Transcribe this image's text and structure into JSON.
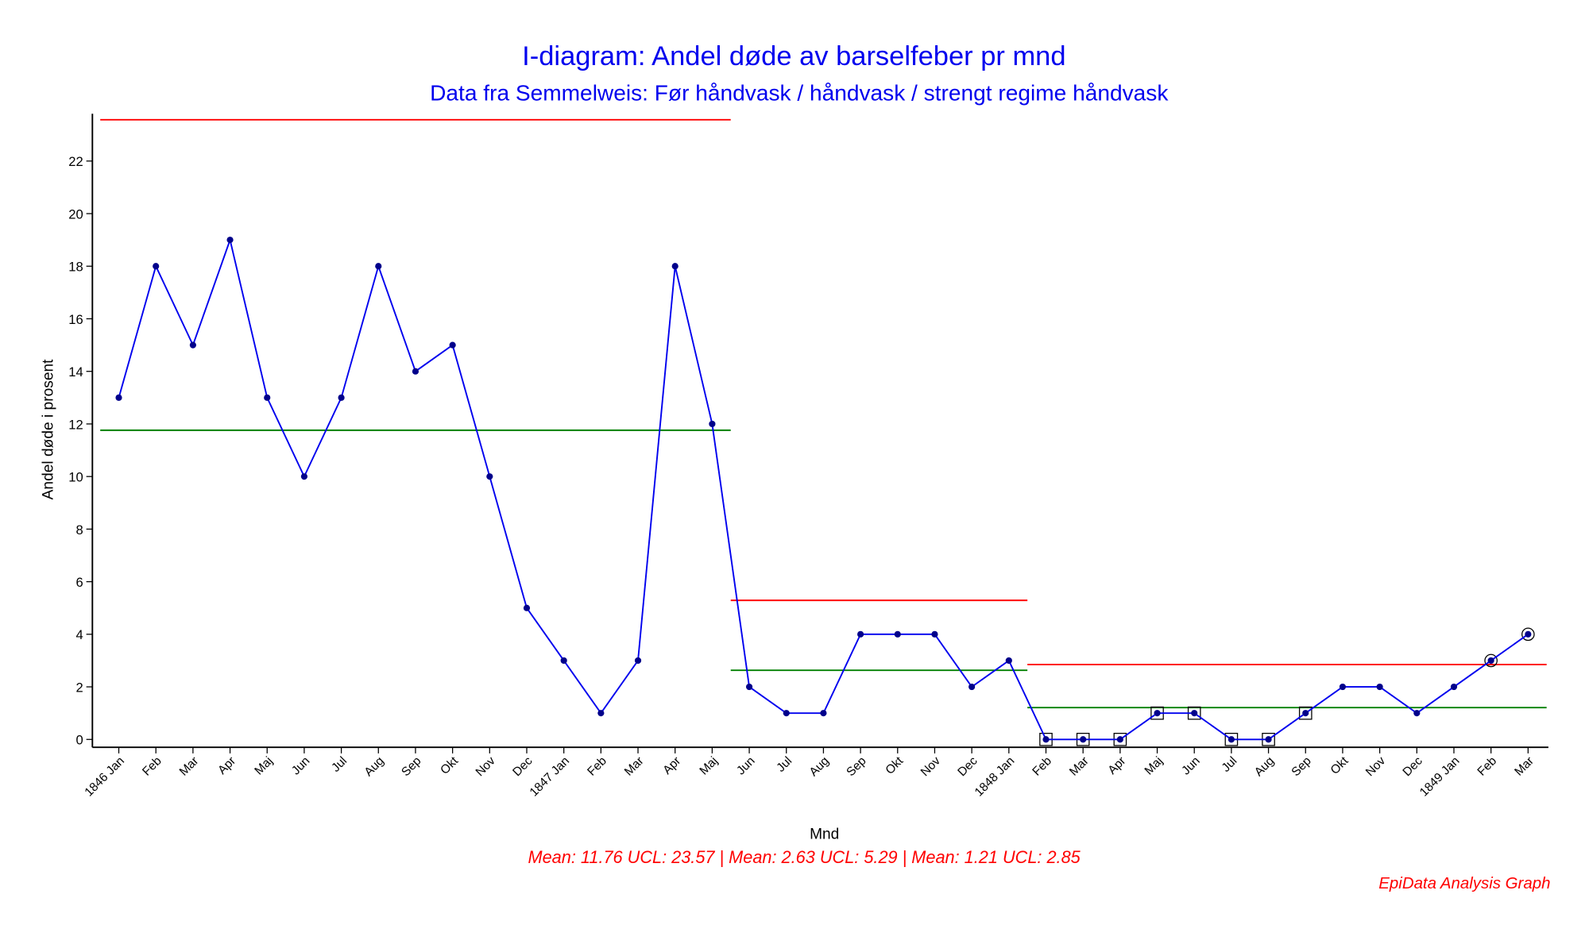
{
  "chart_data": {
    "type": "control",
    "title": "I-diagram: Andel døde av barselfeber pr mnd",
    "subtitle": "Data fra Semmelweis: Før håndvask / håndvask / strengt regime håndvask",
    "x_label": "Mnd",
    "y_label": "Andel døde i prosent",
    "footer": "Mean: 11.76 UCL: 23.57 |   Mean: 2.63 UCL: 5.29 |   Mean: 1.21 UCL: 2.85",
    "credit": "EpiData Analysis Graph",
    "categories": [
      "1846 Jan",
      "Feb",
      "Mar",
      "Apr",
      "Maj",
      "Jun",
      "Jul",
      "Aug",
      "Sep",
      "Okt",
      "Nov",
      "Dec",
      "1847 Jan",
      "Feb",
      "Mar",
      "Apr",
      "Maj",
      "Jun",
      "Jul",
      "Aug",
      "Sep",
      "Okt",
      "Nov",
      "Dec",
      "1848 Jan",
      "Feb",
      "Mar",
      "Apr",
      "Maj",
      "Jun",
      "Jul",
      "Aug",
      "Sep",
      "Okt",
      "Nov",
      "Dec",
      "1849 Jan",
      "Feb",
      "Mar"
    ],
    "phases": [
      {
        "mean": 11.76,
        "ucl": 23.57,
        "values": [
          13,
          18,
          15,
          19,
          13,
          10,
          13,
          18,
          14,
          15,
          10,
          5,
          3,
          1,
          3,
          18,
          12
        ]
      },
      {
        "mean": 2.63,
        "ucl": 5.29,
        "values": [
          2,
          1,
          1,
          4,
          4,
          4,
          2,
          3
        ]
      },
      {
        "mean": 1.21,
        "ucl": 2.85,
        "values": [
          0,
          0,
          0,
          1,
          1,
          0,
          0,
          1,
          2,
          2,
          1,
          2,
          3,
          4
        ]
      }
    ],
    "line_color": "#0000ee",
    "point_color": "#00008b",
    "mean_color": "#008000",
    "ucl_color": "#ff0000",
    "ylim": [
      -0.3,
      23.8
    ],
    "yticks": [
      0,
      2,
      4,
      6,
      8,
      10,
      12,
      14,
      16,
      18,
      20,
      22
    ]
  }
}
